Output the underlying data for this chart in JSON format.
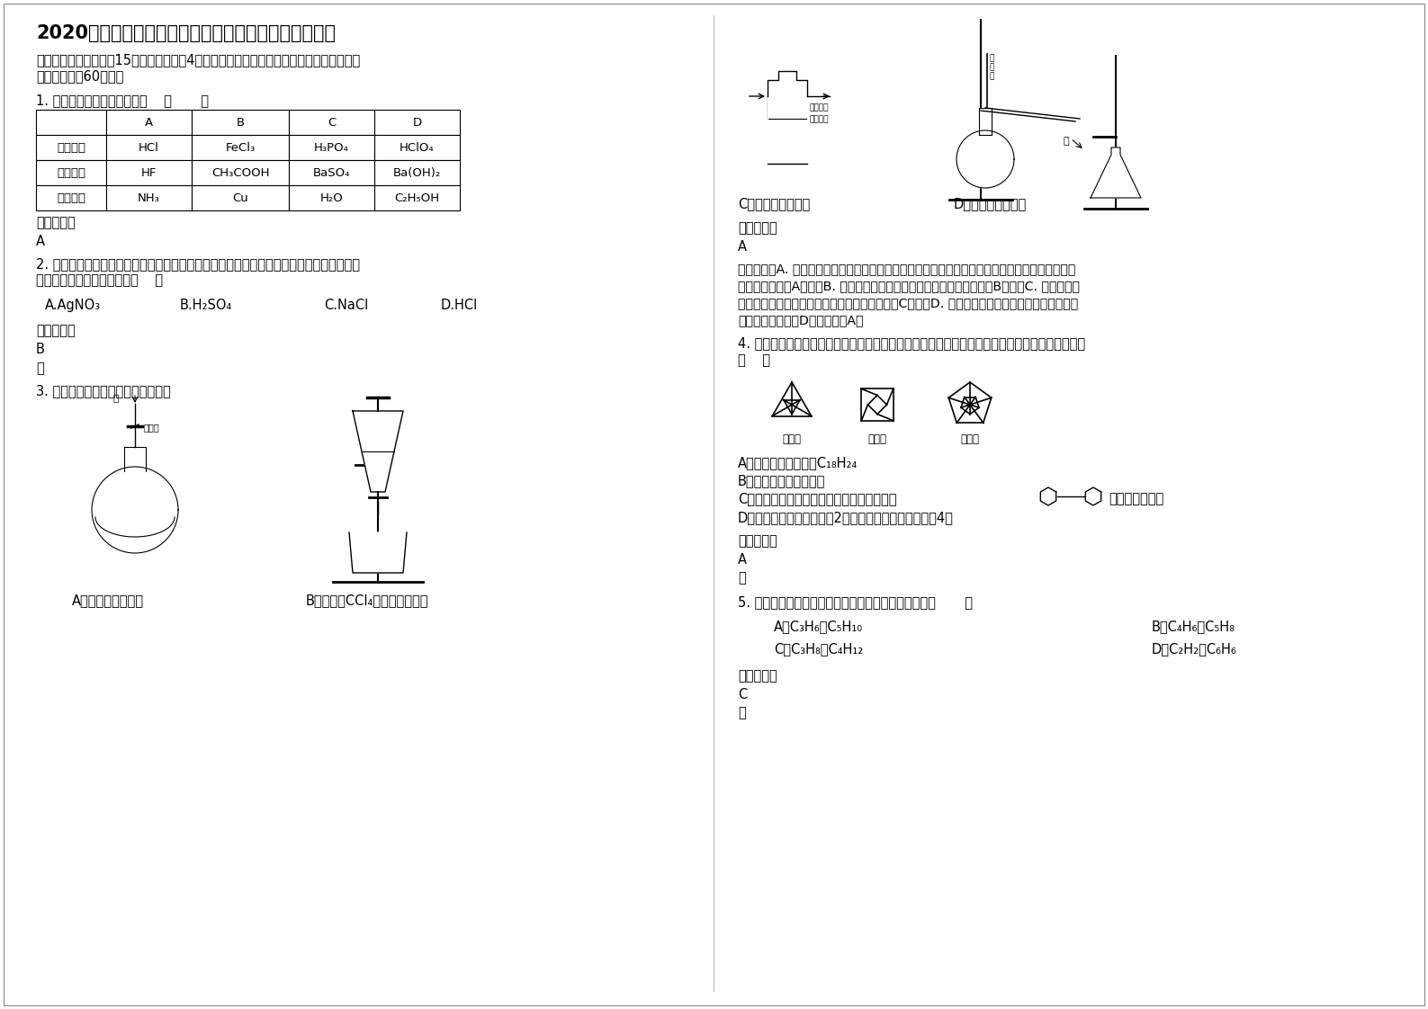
{
  "title": "2020年山东省德州市第十中学高二化学月考试题含解析",
  "bg_color": "#ffffff",
  "section_header": "一、单选题（本大题共15个小题，每小题4分。在每小题给出的四个选项中，只有一项符合题目要求，共60分。）",
  "q1_text": "1. 下列物质分类组合正确的是    （       ）",
  "table_headers": [
    "",
    "A",
    "B",
    "C",
    "D"
  ],
  "table_rows": [
    [
      "强电解质",
      "HCl",
      "FeCl₃",
      "H₃PO₄",
      "HClO₄"
    ],
    [
      "弱电解质",
      "HF",
      "CH₃COOH",
      "BaSO₄",
      "Ba(OH)₂"
    ],
    [
      "非电解质",
      "NH₃",
      "Cu",
      "H₂O",
      "C₂H₅OH"
    ]
  ],
  "q1_ans": "A",
  "q2_text": "2. 用惰性电极分别电解下列各物质水溶液一段时间后，向剩余电解质溶液中加入适量水能使溶液恢复到电解前浓度的是（    ）",
  "q2_opts": [
    "A.AgNO₃",
    "B.H₂SO₄",
    "C.NaCl",
    "D.HCl"
  ],
  "q2_ans": "B",
  "q2_note": "略",
  "q3_text": "3. 下列装置或操作能达到实验目的是",
  "q3_capA": "A．检查装置气密性",
  "q3_capB": "B．从碘的CCl₄溶液中分离出碘",
  "q3_capC": "C．除去甲烷中乙烯",
  "q3_capD": "D．分离甲苯与乙醇",
  "q3_ans_label": "参考答案：",
  "q3_ans": "A",
  "q3_analysis": "试题分析：A. 可关闭止水夹，从长颈漏斗口加入水至水柱高于液面且在一定时间内不变化，可说明气密性良好，故A正确；B. 碘易溶于四氯化碳，应用蒸馏的方法分离，故B错误；C. 乙烯被氧化生成二氧化碳，引入新杂质，应用溴水除杂，故C错误；D. 温度计用于测量馏分的稳定，应位于蒸馏烧瓶支管口，故D错误，故选A。",
  "q4_text": "4. 化学家们合成了如右图所示的一系列的星烷，如三星烷、四星烷、五星烷等。下列说法正确的是（    ）",
  "q4_star_labels": [
    "三星烷",
    "四星烷",
    "五星烷"
  ],
  "q4_optA": "A．六星烷的化学式为C₁₈H₂₄",
  "q4_optB": "B．它们之间互为同系物",
  "q4_optC": "C．三星烷与丙苯互为同分异构体，四星烷与",
  "q4_optC2": "互为同分异构体",
  "q4_optD": "D．星烷的一氯代物均只有2种，而三星烷的二氯代物有4种",
  "q4_ans": "A",
  "q4_note": "略",
  "q5_text": "5. 下列各组有机化合物中，肯定属于同系物的一组是（       ）",
  "q5_optA": "A．C₃H₆与C₅H₁₀",
  "q5_optB": "B．C₄H₆与C₅H₈",
  "q5_optC": "C．C₃H₈与C₄H₁₂",
  "q5_optD": "D．C₂H₂与C₆H₆",
  "q5_ans": "C",
  "q5_note": "略",
  "ans_label": "参考答案："
}
